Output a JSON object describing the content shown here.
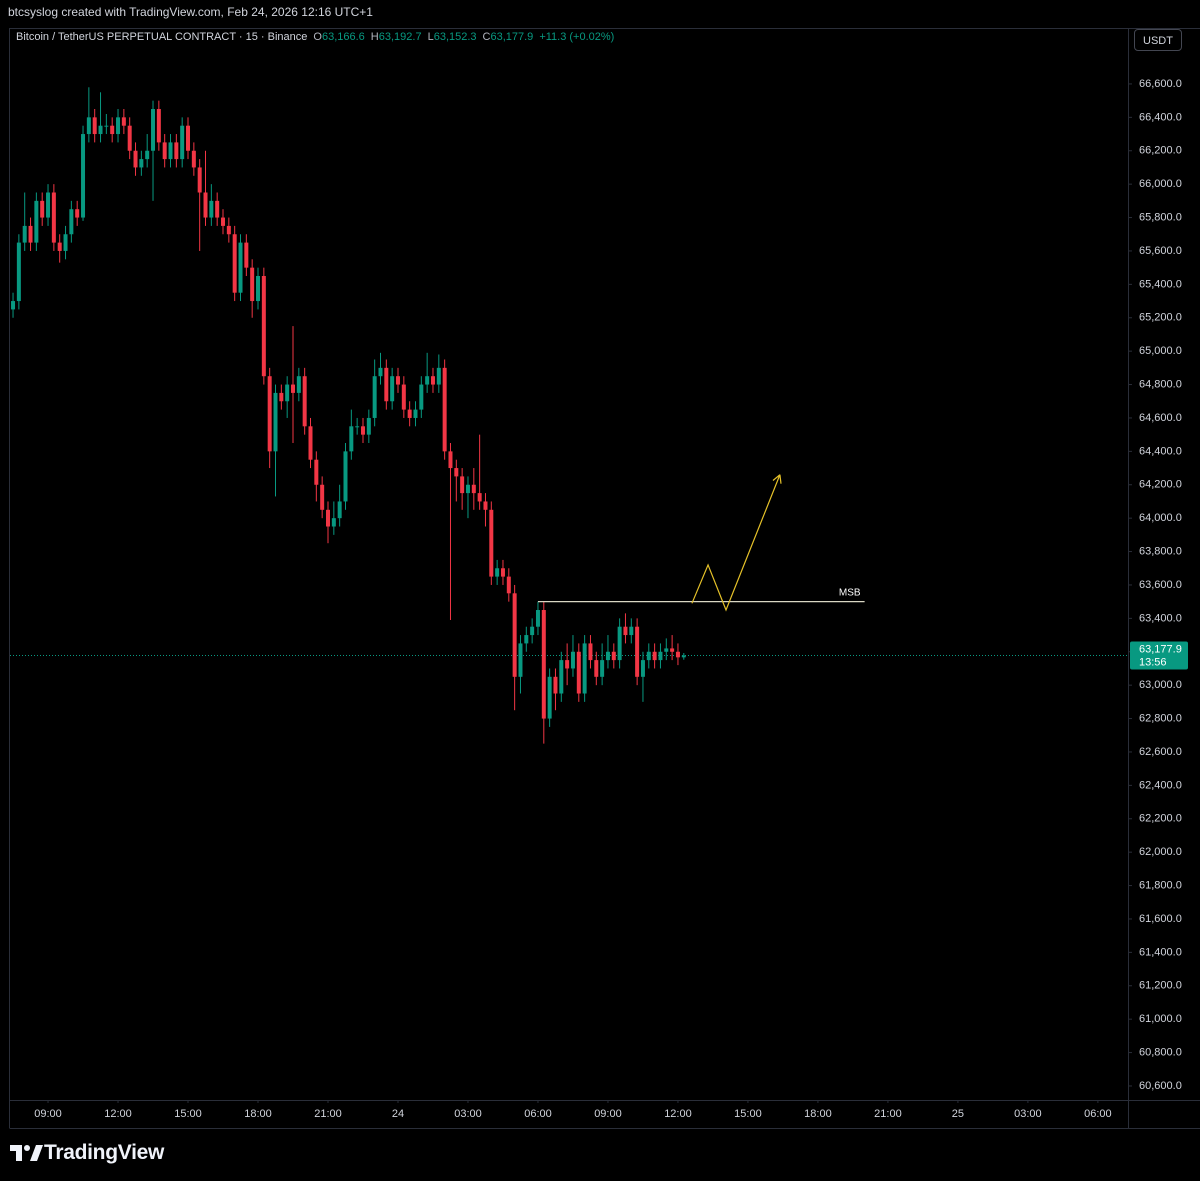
{
  "header": {
    "caption": "btcsyslog created with TradingView.com, Feb 24, 2026 12:16 UTC+1",
    "currency": "USDT"
  },
  "chart_data": {
    "type": "candlestick",
    "title": "Bitcoin / TetherUS PERPETUAL CONTRACT · 15 · Binance",
    "legend": [
      {
        "key": "O",
        "text": "63,166.6"
      },
      {
        "key": "H",
        "text": "63,192.7"
      },
      {
        "key": "L",
        "text": "63,152.3"
      },
      {
        "key": "C",
        "text": "63,177.9"
      }
    ],
    "change": "+11.3 (+0.02%)",
    "up_color": "#089981",
    "down_color": "#f23645",
    "grid": false,
    "x": [
      7.5,
      7.75,
      8,
      8.25,
      8.5,
      8.75,
      9,
      9.25,
      9.5,
      9.75,
      10,
      10.25,
      10.5,
      10.75,
      11,
      11.25,
      11.5,
      11.75,
      12,
      12.25,
      12.5,
      12.75,
      13,
      13.25,
      13.5,
      13.75,
      14,
      14.25,
      14.5,
      14.75,
      15,
      15.25,
      15.5,
      15.75,
      16,
      16.25,
      16.5,
      16.75,
      17,
      17.25,
      17.5,
      17.75,
      18,
      18.25,
      18.5,
      18.75,
      19,
      19.25,
      19.5,
      19.75,
      20,
      20.25,
      20.5,
      20.75,
      21,
      21.25,
      21.5,
      21.75,
      22,
      22.25,
      22.5,
      22.75,
      23,
      23.25,
      23.5,
      23.75,
      24,
      24.25,
      24.5,
      24.75,
      25,
      25.25,
      25.5,
      25.75,
      26,
      26.25,
      26.5,
      26.75,
      27,
      27.25,
      27.5,
      27.75,
      28,
      28.25,
      28.5,
      28.75,
      29,
      29.25,
      29.5,
      29.75,
      30,
      30.25,
      30.5,
      30.75,
      31,
      31.25,
      31.5,
      31.75,
      32,
      32.25,
      32.5,
      32.75,
      33,
      33.25,
      33.5,
      33.75,
      34,
      34.25,
      34.5,
      34.75,
      35,
      35.25,
      35.5,
      35.75,
      36,
      36.25
    ],
    "open": [
      65250,
      65300,
      65650,
      65750,
      65650,
      65900,
      65800,
      65950,
      65650,
      65600,
      65700,
      65850,
      65800,
      66300,
      66400,
      66300,
      66350,
      66350,
      66300,
      66400,
      66350,
      66200,
      66100,
      66150,
      66200,
      66450,
      66250,
      66150,
      66250,
      66150,
      66350,
      66200,
      66100,
      65950,
      65800,
      65900,
      65800,
      65750,
      65700,
      65350,
      65650,
      65500,
      65300,
      65450,
      64850,
      64400,
      64750,
      64700,
      64800,
      64750,
      64850,
      64550,
      64350,
      64200,
      64050,
      63950,
      64000,
      64100,
      64400,
      64550,
      64550,
      64500,
      64600,
      64850,
      64900,
      64700,
      64850,
      64800,
      64650,
      64600,
      64650,
      64800,
      64850,
      64800,
      64900,
      64400,
      64300,
      64250,
      64150,
      64200,
      64150,
      64100,
      64050,
      63650,
      63700,
      63650,
      63550,
      63050,
      63250,
      63300,
      63350,
      63450,
      62800,
      63050,
      62950,
      63150,
      63100,
      63200,
      62950,
      63250,
      63150,
      63050,
      63150,
      63200,
      63150,
      63350,
      63300,
      63350,
      63050,
      63150,
      63200,
      63150,
      63200,
      63220,
      63200,
      63166.6
    ],
    "high": [
      65350,
      65700,
      65950,
      65800,
      65950,
      65950,
      66000,
      66000,
      65700,
      65750,
      65900,
      65900,
      66350,
      66580,
      66450,
      66550,
      66420,
      66400,
      66450,
      66450,
      66400,
      66250,
      66200,
      66300,
      66500,
      66500,
      66300,
      66300,
      66300,
      66400,
      66400,
      66250,
      66150,
      66200,
      66000,
      65950,
      65850,
      65800,
      65750,
      65700,
      65700,
      65550,
      65500,
      65500,
      64900,
      64800,
      64800,
      64850,
      65150,
      64900,
      64900,
      64600,
      64400,
      64250,
      64100,
      64100,
      64200,
      64450,
      64650,
      64600,
      64600,
      64650,
      64950,
      64990,
      64950,
      64900,
      64900,
      64850,
      64700,
      64700,
      64850,
      64990,
      64900,
      64980,
      64950,
      64450,
      64350,
      64300,
      64250,
      64300,
      64500,
      64150,
      64100,
      63750,
      63750,
      63700,
      63600,
      63300,
      63350,
      63400,
      63500,
      63500,
      63100,
      63100,
      63200,
      63250,
      63300,
      63250,
      63300,
      63300,
      63200,
      63250,
      63300,
      63250,
      63400,
      63430,
      63400,
      63400,
      63200,
      63250,
      63250,
      63250,
      63280,
      63300,
      63250,
      63192.7
    ],
    "low": [
      65200,
      65250,
      65600,
      65600,
      65600,
      65750,
      65750,
      65600,
      65530,
      65550,
      65650,
      65750,
      65780,
      66250,
      66250,
      66250,
      66300,
      66250,
      66250,
      66300,
      66150,
      66050,
      66050,
      66100,
      65900,
      66200,
      66100,
      66100,
      66100,
      66100,
      66150,
      66050,
      65600,
      65750,
      65750,
      65750,
      65700,
      65650,
      65300,
      65300,
      65450,
      65200,
      65250,
      64800,
      64300,
      64130,
      64650,
      64600,
      64450,
      64700,
      64500,
      64300,
      64100,
      64000,
      63850,
      63900,
      63950,
      64050,
      64350,
      64500,
      64450,
      64450,
      64550,
      64800,
      64650,
      64650,
      64750,
      64600,
      64550,
      64550,
      64600,
      64750,
      64750,
      64750,
      64350,
      63390,
      64100,
      64050,
      64000,
      64050,
      64050,
      63950,
      63600,
      63600,
      63600,
      63500,
      62850,
      62950,
      63200,
      63250,
      63300,
      62650,
      62750,
      62850,
      62900,
      63000,
      63050,
      62900,
      62900,
      63100,
      63000,
      63000,
      63100,
      63100,
      63100,
      63250,
      63250,
      63000,
      62900,
      63100,
      63100,
      63100,
      63150,
      63150,
      63120,
      63152.3
    ],
    "close": [
      65300,
      65650,
      65750,
      65650,
      65900,
      65800,
      65950,
      65650,
      65600,
      65700,
      65850,
      65800,
      66300,
      66400,
      66300,
      66350,
      66350,
      66300,
      66400,
      66350,
      66200,
      66100,
      66150,
      66200,
      66450,
      66250,
      66150,
      66250,
      66150,
      66350,
      66200,
      66100,
      65950,
      65800,
      65900,
      65800,
      65750,
      65700,
      65350,
      65650,
      65500,
      65300,
      65450,
      64850,
      64400,
      64750,
      64700,
      64800,
      64750,
      64850,
      64550,
      64350,
      64200,
      64050,
      63950,
      64000,
      64100,
      64400,
      64550,
      64550,
      64500,
      64600,
      64850,
      64900,
      64700,
      64850,
      64800,
      64650,
      64600,
      64650,
      64800,
      64850,
      64800,
      64900,
      64400,
      64300,
      64250,
      64150,
      64200,
      64150,
      64100,
      64050,
      63650,
      63700,
      63650,
      63550,
      63050,
      63250,
      63300,
      63350,
      63450,
      62800,
      63050,
      62950,
      63150,
      63100,
      63200,
      62950,
      63250,
      63150,
      63050,
      63150,
      63200,
      63150,
      63350,
      63300,
      63350,
      63050,
      63150,
      63200,
      63150,
      63200,
      63220,
      63200,
      63166.6,
      63177.9
    ],
    "xlim": [
      7.37,
      55.29
    ],
    "ylim": [
      60516,
      66935
    ],
    "xticks": [
      {
        "value": 9,
        "label": "09:00"
      },
      {
        "value": 12,
        "label": "12:00"
      },
      {
        "value": 15,
        "label": "15:00"
      },
      {
        "value": 18,
        "label": "18:00"
      },
      {
        "value": 21,
        "label": "21:00"
      },
      24,
      {
        "value": 27,
        "label": "03:00"
      },
      {
        "value": 30,
        "label": "06:00"
      },
      {
        "value": 33,
        "label": "09:00"
      },
      {
        "value": 36,
        "label": "12:00"
      },
      {
        "value": 39,
        "label": "15:00"
      },
      {
        "value": 42,
        "label": "18:00"
      },
      {
        "value": 45,
        "label": "21:00"
      },
      {
        "value": 48,
        "label": "25"
      },
      {
        "value": 51,
        "label": "03:00"
      },
      {
        "value": 54,
        "label": "06:00"
      }
    ],
    "yticks": [
      {
        "value": 60600,
        "label": "60,600.0"
      },
      {
        "value": 60800,
        "label": "60,800.0"
      },
      {
        "value": 61000,
        "label": "61,000.0"
      },
      {
        "value": 61200,
        "label": "61,200.0"
      },
      {
        "value": 61400,
        "label": "61,400.0"
      },
      {
        "value": 61600,
        "label": "61,600.0"
      },
      {
        "value": 61800,
        "label": "61,800.0"
      },
      {
        "value": 62000,
        "label": "62,000.0"
      },
      {
        "value": 62200,
        "label": "62,200.0"
      },
      {
        "value": 62400,
        "label": "62,400.0"
      },
      {
        "value": 62600,
        "label": "62,600.0"
      },
      {
        "value": 62800,
        "label": "62,800.0"
      },
      {
        "value": 63000,
        "label": "63,000.0"
      },
      {
        "value": 63200,
        "label": "63,200.0"
      },
      {
        "value": 63400,
        "label": "63,400.0"
      },
      {
        "value": 63600,
        "label": "63,600.0"
      },
      {
        "value": 63800,
        "label": "63,800.0"
      },
      {
        "value": 64000,
        "label": "64,000.0"
      },
      {
        "value": 64200,
        "label": "64,200.0"
      },
      {
        "value": 64400,
        "label": "64,400.0"
      },
      {
        "value": 64600,
        "label": "64,600.0"
      },
      {
        "value": 64800,
        "label": "64,800.0"
      },
      {
        "value": 65000,
        "label": "65,000.0"
      },
      {
        "value": 65200,
        "label": "65,200.0"
      },
      {
        "value": 65400,
        "label": "65,400.0"
      },
      {
        "value": 65600,
        "label": "65,600.0"
      },
      {
        "value": 65800,
        "label": "65,800.0"
      },
      {
        "value": 66000,
        "label": "66,000.0"
      },
      {
        "value": 66200,
        "label": "66,200.0"
      },
      {
        "value": 66400,
        "label": "66,400.0"
      },
      {
        "value": 66600,
        "label": "66,600.0"
      }
    ],
    "last_price": {
      "value": 63177.9,
      "label": "63,177.9"
    },
    "countdown": "13:56",
    "lines": [
      {
        "label": "MSB",
        "y": 63500,
        "x": [
          30,
          44
        ],
        "color": "#d9d6c3"
      }
    ],
    "arrow": {
      "x": [
        36.6,
        37.29,
        38.06,
        40.37
      ],
      "y": [
        63490,
        63720,
        63450,
        64260
      ],
      "color": "#e6c229"
    }
  },
  "footer": {
    "brand": "TradingView"
  }
}
